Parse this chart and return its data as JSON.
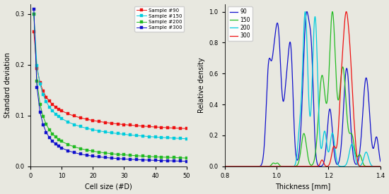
{
  "left": {
    "xlabel": "Cell size (#D)",
    "ylabel": "Standard deviation",
    "xlim": [
      0,
      50
    ],
    "ylim": [
      0,
      0.32
    ],
    "yticks": [
      0.0,
      0.1,
      0.2,
      0.3
    ],
    "xticks": [
      0,
      10,
      20,
      30,
      40,
      50
    ],
    "series": {
      "90": {
        "color": "#ee1111",
        "marker": "s",
        "label": "Sample #90"
      },
      "150": {
        "color": "#00ccdd",
        "marker": "s",
        "label": "Sample #150"
      },
      "200": {
        "color": "#22bb22",
        "marker": "s",
        "label": "Sample #200"
      },
      "300": {
        "color": "#1111cc",
        "marker": "s",
        "label": "Sample #300"
      }
    }
  },
  "right": {
    "xlabel": "Thickness [mm]",
    "ylabel": "Relative density",
    "xlim": [
      0.8,
      1.4
    ],
    "ylim": [
      0.0,
      1.05
    ],
    "yticks": [
      0.0,
      0.2,
      0.4,
      0.6,
      0.8,
      1.0
    ],
    "xticks": [
      0.8,
      1.0,
      1.2,
      1.4
    ],
    "series": {
      "90": {
        "color": "#1111cc",
        "label": "90"
      },
      "150": {
        "color": "#22bb22",
        "label": "150"
      },
      "200": {
        "color": "#00ccdd",
        "label": "200"
      },
      "300": {
        "color": "#ee1111",
        "label": "300"
      }
    }
  }
}
